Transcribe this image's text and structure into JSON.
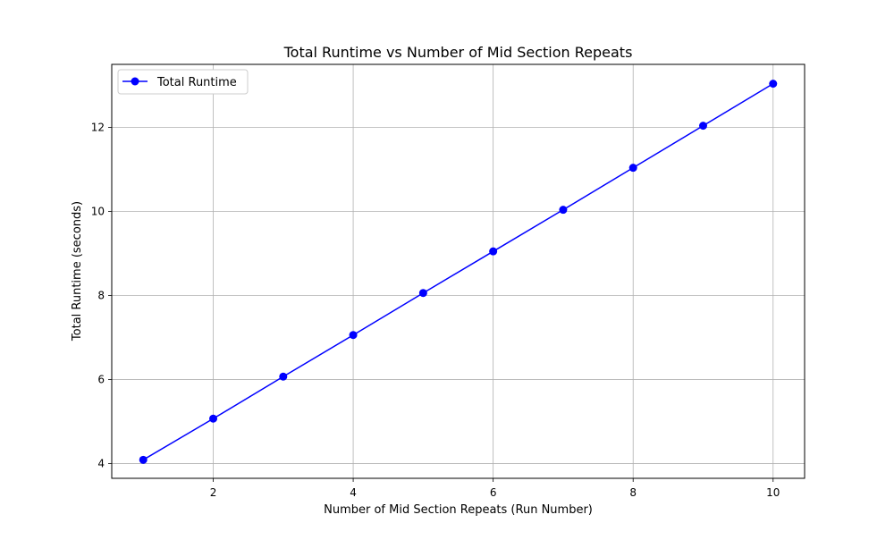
{
  "chart_data": {
    "type": "line",
    "title": "Total Runtime vs Number of Mid Section Repeats",
    "xlabel": "Number of Mid Section Repeats (Run Number)",
    "ylabel": "Total Runtime (seconds)",
    "x": [
      1,
      2,
      3,
      4,
      5,
      6,
      7,
      8,
      9,
      10
    ],
    "series": [
      {
        "name": "Total Runtime",
        "color": "#0000ff",
        "marker": "circle",
        "values": [
          4.09,
          5.07,
          6.07,
          7.06,
          8.06,
          9.05,
          10.04,
          11.04,
          12.04,
          13.04
        ]
      }
    ],
    "xlim": [
      0.55,
      10.45
    ],
    "ylim": [
      3.65,
      13.5
    ],
    "xticks": [
      2,
      4,
      6,
      8,
      10
    ],
    "yticks": [
      4,
      6,
      8,
      10,
      12
    ],
    "grid": true,
    "legend_position": "top-left"
  }
}
